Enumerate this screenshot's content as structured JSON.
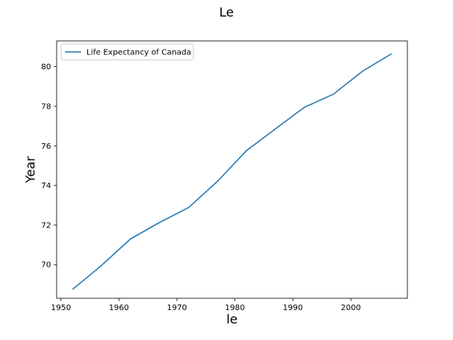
{
  "chart_data": {
    "type": "line",
    "title": "Le",
    "xlabel": "le",
    "ylabel": "Year",
    "xlim": [
      1949.25,
      2009.75
    ],
    "ylim": [
      68.3,
      81.3
    ],
    "xticks": [
      1950,
      1960,
      1970,
      1980,
      1990,
      2000
    ],
    "yticks": [
      70,
      72,
      74,
      76,
      78,
      80
    ],
    "grid": false,
    "legend_position": "upper-left",
    "series": [
      {
        "name": "Life Expectancy of Canada",
        "color": "#1f77b4",
        "x": [
          1952,
          1957,
          1962,
          1967,
          1972,
          1977,
          1982,
          1987,
          1992,
          1997,
          2002,
          2007
        ],
        "y": [
          68.75,
          69.96,
          71.3,
          72.13,
          72.88,
          74.21,
          75.76,
          76.86,
          77.95,
          78.61,
          79.77,
          80.65
        ]
      }
    ]
  }
}
